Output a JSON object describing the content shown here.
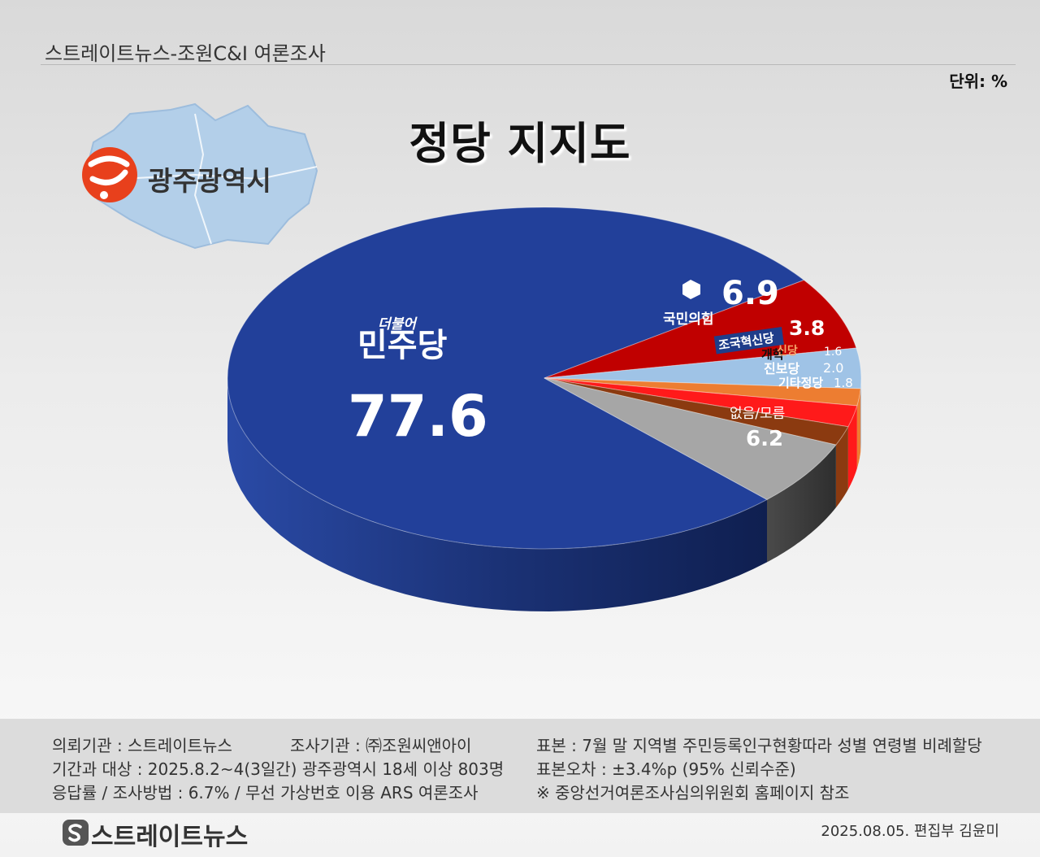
{
  "header": {
    "source": "스트레이트뉴스-조원C&I 여론조사",
    "unit": "단위: %"
  },
  "title": "정당 지지도",
  "region": {
    "name": "광주광역시"
  },
  "chart_data": {
    "type": "pie",
    "title": "정당 지지도",
    "unit": "%",
    "slices": [
      {
        "label": "더불어민주당",
        "value": 77.6,
        "color": "#22409a"
      },
      {
        "label": "국민의힘",
        "value": 6.9,
        "color": "#c00000"
      },
      {
        "label": "조국혁신당",
        "value": 3.8,
        "color": "#9fc3e6"
      },
      {
        "label": "개혁신당",
        "value": 1.6,
        "color": "#ed7d31"
      },
      {
        "label": "진보당",
        "value": 2.0,
        "color": "#ff1a1a"
      },
      {
        "label": "기타정당",
        "value": 1.8,
        "color": "#8b3a10"
      },
      {
        "label": "없음/모름",
        "value": 6.2,
        "color": "#a6a6a6"
      }
    ]
  },
  "labels": {
    "minju_small": "더불어",
    "minju_main": "민주당",
    "minju_value": "77.6",
    "ppp_name": "국민의힘",
    "ppp_value": "6.9",
    "rebuild_name": "조국혁신당",
    "rebuild_value": "3.8",
    "reform_name_a": "개혁",
    "reform_name_b": "신당",
    "reform_value": "1.6",
    "progressive_name": "진보당",
    "progressive_value": "2.0",
    "other_name": "기타정당",
    "other_value": "1.8",
    "none_name": "없음/모름",
    "none_value": "6.2"
  },
  "footer": {
    "client": "의뢰기관 : 스트레이트뉴스",
    "agency": "조사기관 : ㈜조원씨앤아이",
    "sample": "표본 : 7월 말 지역별 주민등록인구현황따라 성별 연령별 비례할당",
    "period": "기간과 대상 : 2025.8.2~4(3일간) 광주광역시  18세 이상 803명",
    "error": "표본오차 : ±3.4%p (95% 신뢰수준)",
    "method": "응답률 / 조사방법 : 6.7% / 무선 가상번호 이용 ARS 여론조사",
    "note": "※ 중앙선거여론조사심의위원회 홈페이지 참조"
  },
  "brand": {
    "name": "스트레이트뉴스"
  },
  "credit": "2025.08.05. 편집부 김윤미"
}
